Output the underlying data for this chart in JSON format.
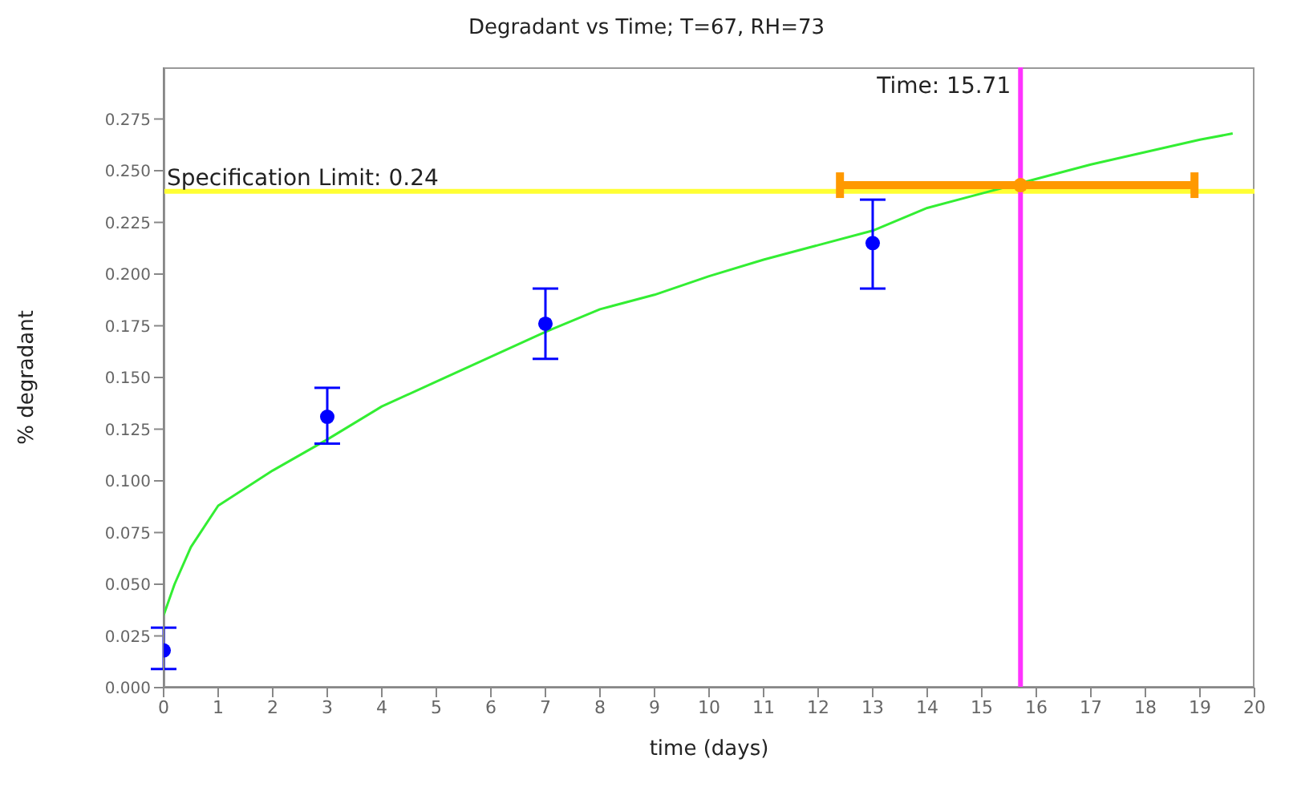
{
  "chart_data": {
    "type": "scatter",
    "title": "Degradant vs Time; T=67, RH=73",
    "xlabel": "time (days)",
    "ylabel": "% degradant",
    "xlim": [
      0,
      20
    ],
    "xticks": [
      0,
      1,
      2,
      3,
      4,
      5,
      6,
      7,
      8,
      9,
      10,
      11,
      12,
      13,
      14,
      15,
      16,
      17,
      18,
      19,
      20
    ],
    "ylim": [
      0,
      0.3
    ],
    "yticks": [
      {
        "value": 0,
        "label": "0.000"
      },
      {
        "value": 0.025,
        "label": "0.025"
      },
      {
        "value": 0.05,
        "label": "0.050"
      },
      {
        "value": 0.075,
        "label": "0.075"
      },
      {
        "value": 0.1,
        "label": "0.100"
      },
      {
        "value": 0.125,
        "label": "0.125"
      },
      {
        "value": 0.15,
        "label": "0.150"
      },
      {
        "value": 0.175,
        "label": "0.175"
      },
      {
        "value": 0.2,
        "label": "0.200"
      },
      {
        "value": 0.225,
        "label": "0.225"
      },
      {
        "value": 0.25,
        "label": "0.250"
      },
      {
        "value": 0.275,
        "label": "0.275"
      }
    ],
    "marker": "circle",
    "series": [
      {
        "type": "line",
        "marker": "none",
        "color": "#33ee33",
        "x": [
          0,
          0.2,
          0.5,
          1,
          2,
          3,
          4,
          5,
          6,
          7,
          8,
          9,
          10,
          11,
          12,
          13,
          14,
          15,
          16,
          17,
          18,
          19,
          19.6
        ],
        "values": [
          0.035,
          0.05,
          0.068,
          0.088,
          0.105,
          0.12,
          0.136,
          0.148,
          0.16,
          0.172,
          0.183,
          0.19,
          0.199,
          0.207,
          0.214,
          0.221,
          0.232,
          0.239,
          0.246,
          0.253,
          0.259,
          0.265,
          0.268
        ]
      },
      {
        "color": "#0000ff",
        "x": [
          0,
          3,
          7,
          13
        ],
        "values": [
          0.018,
          0.131,
          0.176,
          0.215
        ],
        "errors": [
          [
            0.009,
            0.029
          ],
          [
            0.118,
            0.145
          ],
          [
            0.159,
            0.193
          ],
          [
            0.193,
            0.236
          ]
        ]
      },
      {
        "color": "#ff9900",
        "x": [
          15.71
        ],
        "values": [
          0.243
        ],
        "xerrors": [
          [
            12.4,
            18.9
          ]
        ]
      }
    ],
    "ref_lines": [
      {
        "axis": "y",
        "value": 0.24,
        "label": "Specification Limit: 0.24",
        "color": "#ffff33"
      },
      {
        "axis": "x",
        "value": 15.71,
        "label": "Time: 15.71",
        "color": "#ff33ff"
      }
    ]
  }
}
